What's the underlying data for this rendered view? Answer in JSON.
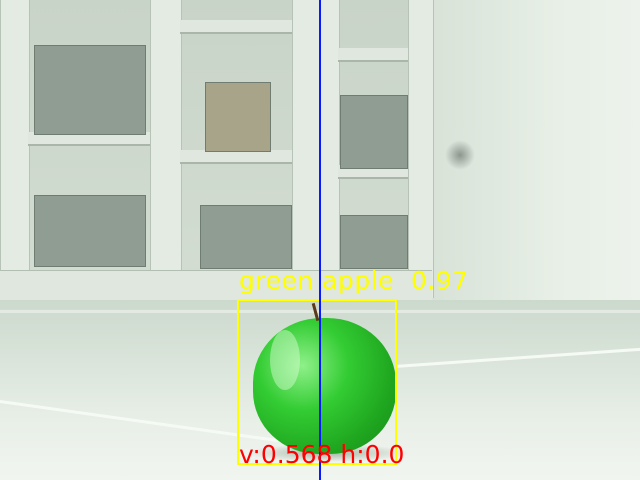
{
  "detection": {
    "label": "green apple",
    "score": "0.97",
    "box_color": "#ffff00"
  },
  "readout": {
    "v_label": "v:",
    "v_value": "0.568",
    "h_label": "h:",
    "h_value": "0.0",
    "color": "#ff0000"
  },
  "center_line_color": "#0a1aff"
}
